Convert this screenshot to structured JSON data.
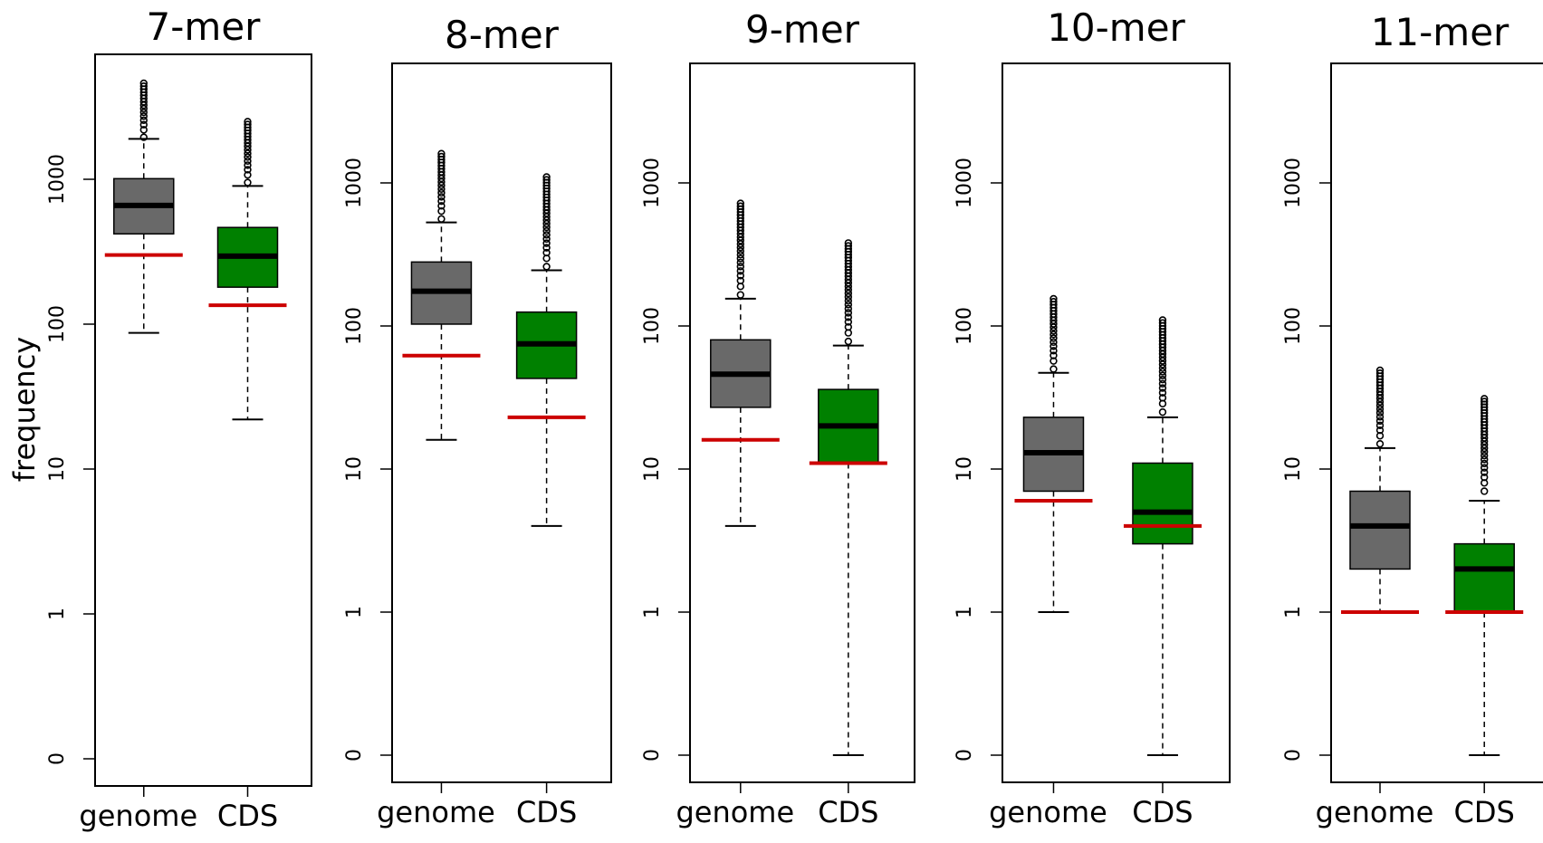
{
  "chart_data": {
    "type": "boxplot",
    "ylabel": "frequency",
    "y_scale": "log",
    "y_ticks": [
      "0",
      "1",
      "10",
      "100",
      "1000"
    ],
    "categories": [
      "genome",
      "CDS"
    ],
    "colors": {
      "genome": "#696969",
      "CDS": "#008000",
      "reference_line": "#cc0000",
      "median": "#000000"
    },
    "panels": [
      {
        "title": "7-mer",
        "boxes": [
          {
            "category": "genome",
            "whisker_low": 87,
            "q1": 420,
            "median": 660,
            "q3": 1010,
            "whisker_high": 1900,
            "outliers_from": 1950,
            "outliers_to": 4600,
            "reference": 300
          },
          {
            "category": "CDS",
            "whisker_low": 22,
            "q1": 180,
            "median": 295,
            "q3": 465,
            "whisker_high": 900,
            "outliers_from": 950,
            "outliers_to": 2500,
            "reference": 135
          }
        ]
      },
      {
        "title": "8-mer",
        "boxes": [
          {
            "category": "genome",
            "whisker_low": 16,
            "q1": 103,
            "median": 175,
            "q3": 280,
            "whisker_high": 530,
            "outliers_from": 560,
            "outliers_to": 1600,
            "reference": 62
          },
          {
            "category": "CDS",
            "whisker_low": 4,
            "q1": 43,
            "median": 75,
            "q3": 125,
            "whisker_high": 245,
            "outliers_from": 260,
            "outliers_to": 1100,
            "reference": 23
          }
        ]
      },
      {
        "title": "9-mer",
        "boxes": [
          {
            "category": "genome",
            "whisker_low": 4,
            "q1": 27,
            "median": 46,
            "q3": 80,
            "whisker_high": 155,
            "outliers_from": 165,
            "outliers_to": 720,
            "reference": 16
          },
          {
            "category": "CDS",
            "whisker_low": 0,
            "q1": 11,
            "median": 20,
            "q3": 36,
            "whisker_high": 73,
            "outliers_from": 78,
            "outliers_to": 380,
            "reference": 11
          }
        ]
      },
      {
        "title": "10-mer",
        "boxes": [
          {
            "category": "genome",
            "whisker_low": 1,
            "q1": 7,
            "median": 13,
            "q3": 23,
            "whisker_high": 47,
            "outliers_from": 50,
            "outliers_to": 155,
            "reference": 6
          },
          {
            "category": "CDS",
            "whisker_low": 0,
            "q1": 3,
            "median": 5,
            "q3": 11,
            "whisker_high": 23,
            "outliers_from": 25,
            "outliers_to": 110,
            "reference": 4
          }
        ]
      },
      {
        "title": "11-mer",
        "boxes": [
          {
            "category": "genome",
            "whisker_low": 1,
            "q1": 2,
            "median": 4,
            "q3": 7,
            "whisker_high": 14,
            "outliers_from": 15,
            "outliers_to": 49,
            "reference": 1
          },
          {
            "category": "CDS",
            "whisker_low": 0,
            "q1": 1,
            "median": 2,
            "q3": 3,
            "whisker_high": 6,
            "outliers_from": 7,
            "outliers_to": 31,
            "reference": 1
          }
        ]
      }
    ]
  }
}
